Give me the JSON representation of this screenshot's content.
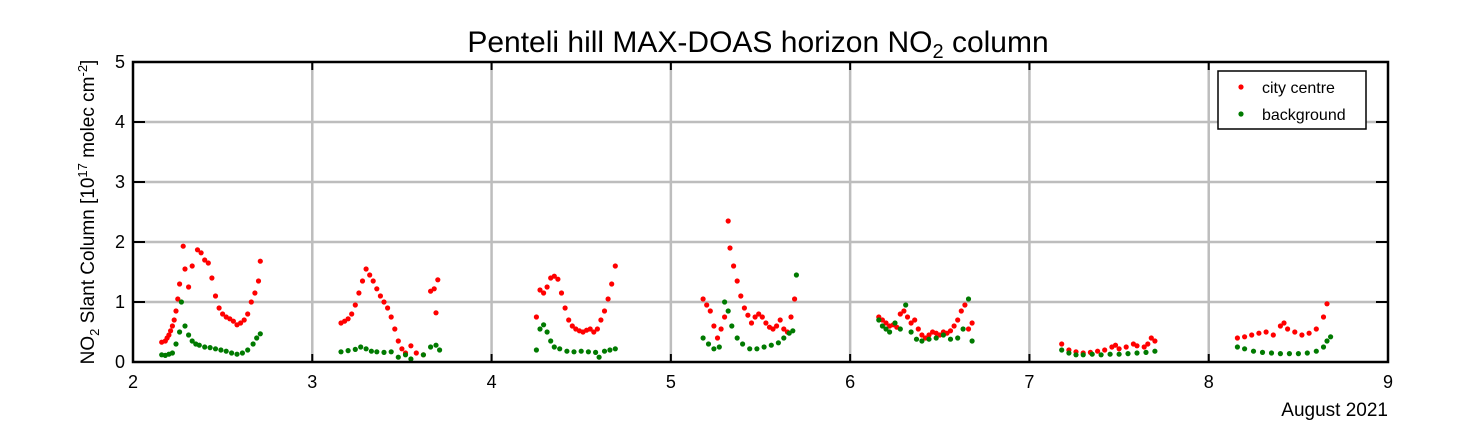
{
  "chart_data": {
    "type": "scatter",
    "title_main": "Penteli hill MAX-DOAS horizon NO",
    "title_sub": "2",
    "title_tail": " column",
    "ylabel_pre": "NO",
    "ylabel_sub": "2",
    "ylabel_mid": " Slant Column [10",
    "ylabel_sup": "17",
    "ylabel_mid2": " molec cm",
    "ylabel_sup2": "-2",
    "ylabel_end": "]",
    "xlabel": "August 2021",
    "xlim": [
      2,
      9
    ],
    "ylim": [
      0,
      5
    ],
    "x_ticks": [
      "2",
      "3",
      "4",
      "5",
      "6",
      "7",
      "8",
      "9"
    ],
    "y_ticks": [
      "0",
      "1",
      "2",
      "3",
      "4",
      "5"
    ],
    "grid": true,
    "legend_position": "top-right",
    "colors": {
      "city": "#ff0000",
      "background": "#007a00"
    },
    "series": [
      {
        "name": "city centre",
        "color": "#ff0000",
        "points": [
          [
            2.16,
            0.33
          ],
          [
            2.18,
            0.35
          ],
          [
            2.19,
            0.4
          ],
          [
            2.2,
            0.45
          ],
          [
            2.21,
            0.52
          ],
          [
            2.22,
            0.6
          ],
          [
            2.23,
            0.7
          ],
          [
            2.24,
            0.85
          ],
          [
            2.25,
            1.05
          ],
          [
            2.26,
            1.3
          ],
          [
            2.28,
            1.93
          ],
          [
            2.29,
            1.55
          ],
          [
            2.31,
            1.25
          ],
          [
            2.33,
            1.6
          ],
          [
            2.36,
            1.87
          ],
          [
            2.38,
            1.82
          ],
          [
            2.4,
            1.7
          ],
          [
            2.42,
            1.65
          ],
          [
            2.44,
            1.4
          ],
          [
            2.46,
            1.1
          ],
          [
            2.48,
            0.9
          ],
          [
            2.5,
            0.8
          ],
          [
            2.52,
            0.75
          ],
          [
            2.54,
            0.72
          ],
          [
            2.56,
            0.68
          ],
          [
            2.58,
            0.62
          ],
          [
            2.6,
            0.65
          ],
          [
            2.62,
            0.7
          ],
          [
            2.64,
            0.8
          ],
          [
            2.66,
            1.0
          ],
          [
            2.68,
            1.15
          ],
          [
            2.7,
            1.35
          ],
          [
            2.71,
            1.68
          ],
          [
            3.16,
            0.65
          ],
          [
            3.18,
            0.68
          ],
          [
            3.2,
            0.72
          ],
          [
            3.22,
            0.8
          ],
          [
            3.24,
            0.95
          ],
          [
            3.26,
            1.15
          ],
          [
            3.28,
            1.35
          ],
          [
            3.3,
            1.55
          ],
          [
            3.32,
            1.45
          ],
          [
            3.34,
            1.35
          ],
          [
            3.36,
            1.22
          ],
          [
            3.38,
            1.1
          ],
          [
            3.4,
            1.0
          ],
          [
            3.42,
            0.9
          ],
          [
            3.44,
            0.75
          ],
          [
            3.46,
            0.55
          ],
          [
            3.48,
            0.35
          ],
          [
            3.5,
            0.22
          ],
          [
            3.52,
            0.15
          ],
          [
            3.55,
            0.27
          ],
          [
            3.58,
            0.15
          ],
          [
            3.62,
            0.12
          ],
          [
            3.66,
            1.18
          ],
          [
            3.68,
            1.22
          ],
          [
            3.69,
            0.82
          ],
          [
            3.7,
            1.37
          ],
          [
            4.25,
            0.75
          ],
          [
            4.27,
            1.2
          ],
          [
            4.29,
            1.15
          ],
          [
            4.31,
            1.25
          ],
          [
            4.33,
            1.4
          ],
          [
            4.35,
            1.43
          ],
          [
            4.37,
            1.38
          ],
          [
            4.39,
            1.15
          ],
          [
            4.41,
            0.9
          ],
          [
            4.43,
            0.7
          ],
          [
            4.45,
            0.6
          ],
          [
            4.47,
            0.55
          ],
          [
            4.49,
            0.52
          ],
          [
            4.51,
            0.5
          ],
          [
            4.53,
            0.53
          ],
          [
            4.55,
            0.55
          ],
          [
            4.57,
            0.5
          ],
          [
            4.59,
            0.55
          ],
          [
            4.61,
            0.7
          ],
          [
            4.63,
            0.85
          ],
          [
            4.65,
            1.05
          ],
          [
            4.67,
            1.3
          ],
          [
            4.69,
            1.6
          ],
          [
            5.18,
            1.05
          ],
          [
            5.2,
            0.95
          ],
          [
            5.22,
            0.85
          ],
          [
            5.24,
            0.6
          ],
          [
            5.26,
            0.4
          ],
          [
            5.28,
            0.55
          ],
          [
            5.3,
            0.75
          ],
          [
            5.32,
            2.35
          ],
          [
            5.33,
            1.9
          ],
          [
            5.35,
            1.6
          ],
          [
            5.37,
            1.35
          ],
          [
            5.39,
            1.1
          ],
          [
            5.41,
            0.9
          ],
          [
            5.43,
            0.78
          ],
          [
            5.45,
            0.65
          ],
          [
            5.47,
            0.75
          ],
          [
            5.49,
            0.8
          ],
          [
            5.51,
            0.75
          ],
          [
            5.53,
            0.65
          ],
          [
            5.55,
            0.58
          ],
          [
            5.57,
            0.55
          ],
          [
            5.59,
            0.6
          ],
          [
            5.61,
            0.7
          ],
          [
            5.63,
            0.55
          ],
          [
            5.65,
            0.5
          ],
          [
            5.67,
            0.75
          ],
          [
            5.69,
            1.05
          ],
          [
            6.16,
            0.75
          ],
          [
            6.18,
            0.7
          ],
          [
            6.2,
            0.65
          ],
          [
            6.22,
            0.6
          ],
          [
            6.24,
            0.62
          ],
          [
            6.26,
            0.58
          ],
          [
            6.28,
            0.8
          ],
          [
            6.3,
            0.85
          ],
          [
            6.32,
            0.75
          ],
          [
            6.34,
            0.65
          ],
          [
            6.36,
            0.7
          ],
          [
            6.38,
            0.55
          ],
          [
            6.4,
            0.45
          ],
          [
            6.42,
            0.4
          ],
          [
            6.44,
            0.45
          ],
          [
            6.46,
            0.5
          ],
          [
            6.48,
            0.48
          ],
          [
            6.5,
            0.45
          ],
          [
            6.52,
            0.5
          ],
          [
            6.54,
            0.48
          ],
          [
            6.56,
            0.52
          ],
          [
            6.58,
            0.6
          ],
          [
            6.6,
            0.7
          ],
          [
            6.62,
            0.85
          ],
          [
            6.64,
            0.95
          ],
          [
            6.66,
            0.55
          ],
          [
            6.68,
            0.65
          ],
          [
            7.18,
            0.3
          ],
          [
            7.22,
            0.2
          ],
          [
            7.26,
            0.17
          ],
          [
            7.3,
            0.15
          ],
          [
            7.34,
            0.16
          ],
          [
            7.38,
            0.18
          ],
          [
            7.42,
            0.2
          ],
          [
            7.46,
            0.25
          ],
          [
            7.48,
            0.28
          ],
          [
            7.5,
            0.22
          ],
          [
            7.54,
            0.25
          ],
          [
            7.58,
            0.3
          ],
          [
            7.6,
            0.27
          ],
          [
            7.64,
            0.25
          ],
          [
            7.66,
            0.3
          ],
          [
            7.68,
            0.4
          ],
          [
            7.7,
            0.35
          ],
          [
            8.16,
            0.4
          ],
          [
            8.2,
            0.42
          ],
          [
            8.24,
            0.45
          ],
          [
            8.28,
            0.48
          ],
          [
            8.32,
            0.5
          ],
          [
            8.36,
            0.45
          ],
          [
            8.4,
            0.6
          ],
          [
            8.42,
            0.65
          ],
          [
            8.44,
            0.55
          ],
          [
            8.48,
            0.5
          ],
          [
            8.52,
            0.45
          ],
          [
            8.56,
            0.48
          ],
          [
            8.6,
            0.55
          ],
          [
            8.64,
            0.75
          ],
          [
            8.66,
            0.97
          ]
        ]
      },
      {
        "name": "background",
        "color": "#007a00",
        "points": [
          [
            2.16,
            0.12
          ],
          [
            2.18,
            0.11
          ],
          [
            2.2,
            0.13
          ],
          [
            2.22,
            0.15
          ],
          [
            2.24,
            0.3
          ],
          [
            2.26,
            0.5
          ],
          [
            2.27,
            1.0
          ],
          [
            2.29,
            0.6
          ],
          [
            2.31,
            0.45
          ],
          [
            2.33,
            0.35
          ],
          [
            2.35,
            0.3
          ],
          [
            2.37,
            0.28
          ],
          [
            2.4,
            0.25
          ],
          [
            2.43,
            0.24
          ],
          [
            2.46,
            0.22
          ],
          [
            2.49,
            0.2
          ],
          [
            2.52,
            0.18
          ],
          [
            2.55,
            0.15
          ],
          [
            2.58,
            0.13
          ],
          [
            2.61,
            0.15
          ],
          [
            2.64,
            0.2
          ],
          [
            2.67,
            0.3
          ],
          [
            2.69,
            0.4
          ],
          [
            2.71,
            0.47
          ],
          [
            3.16,
            0.17
          ],
          [
            3.2,
            0.19
          ],
          [
            3.24,
            0.21
          ],
          [
            3.27,
            0.25
          ],
          [
            3.3,
            0.22
          ],
          [
            3.33,
            0.18
          ],
          [
            3.36,
            0.17
          ],
          [
            3.4,
            0.16
          ],
          [
            3.44,
            0.17
          ],
          [
            3.48,
            0.08
          ],
          [
            3.52,
            0.12
          ],
          [
            3.55,
            0.05
          ],
          [
            3.62,
            0.12
          ],
          [
            3.66,
            0.25
          ],
          [
            3.69,
            0.28
          ],
          [
            3.71,
            0.2
          ],
          [
            4.25,
            0.2
          ],
          [
            4.27,
            0.55
          ],
          [
            4.29,
            0.62
          ],
          [
            4.31,
            0.5
          ],
          [
            4.33,
            0.35
          ],
          [
            4.35,
            0.25
          ],
          [
            4.38,
            0.22
          ],
          [
            4.42,
            0.18
          ],
          [
            4.46,
            0.17
          ],
          [
            4.5,
            0.18
          ],
          [
            4.54,
            0.17
          ],
          [
            4.58,
            0.16
          ],
          [
            4.6,
            0.08
          ],
          [
            4.63,
            0.18
          ],
          [
            4.66,
            0.2
          ],
          [
            4.69,
            0.22
          ],
          [
            5.18,
            0.4
          ],
          [
            5.21,
            0.3
          ],
          [
            5.24,
            0.22
          ],
          [
            5.27,
            0.25
          ],
          [
            5.3,
            1.0
          ],
          [
            5.32,
            0.85
          ],
          [
            5.34,
            0.6
          ],
          [
            5.37,
            0.4
          ],
          [
            5.4,
            0.3
          ],
          [
            5.44,
            0.22
          ],
          [
            5.48,
            0.22
          ],
          [
            5.52,
            0.25
          ],
          [
            5.56,
            0.28
          ],
          [
            5.6,
            0.32
          ],
          [
            5.63,
            0.4
          ],
          [
            5.66,
            0.48
          ],
          [
            5.68,
            0.52
          ],
          [
            5.7,
            1.45
          ],
          [
            6.16,
            0.7
          ],
          [
            6.18,
            0.6
          ],
          [
            6.2,
            0.55
          ],
          [
            6.22,
            0.5
          ],
          [
            6.25,
            0.65
          ],
          [
            6.28,
            0.55
          ],
          [
            6.31,
            0.95
          ],
          [
            6.34,
            0.5
          ],
          [
            6.37,
            0.38
          ],
          [
            6.4,
            0.35
          ],
          [
            6.44,
            0.38
          ],
          [
            6.48,
            0.4
          ],
          [
            6.52,
            0.45
          ],
          [
            6.56,
            0.38
          ],
          [
            6.6,
            0.4
          ],
          [
            6.63,
            0.55
          ],
          [
            6.66,
            1.05
          ],
          [
            6.68,
            0.35
          ],
          [
            7.18,
            0.2
          ],
          [
            7.22,
            0.15
          ],
          [
            7.26,
            0.12
          ],
          [
            7.3,
            0.12
          ],
          [
            7.35,
            0.13
          ],
          [
            7.4,
            0.12
          ],
          [
            7.45,
            0.13
          ],
          [
            7.5,
            0.13
          ],
          [
            7.55,
            0.14
          ],
          [
            7.6,
            0.15
          ],
          [
            7.65,
            0.16
          ],
          [
            7.7,
            0.18
          ],
          [
            8.16,
            0.25
          ],
          [
            8.2,
            0.22
          ],
          [
            8.25,
            0.18
          ],
          [
            8.3,
            0.16
          ],
          [
            8.35,
            0.15
          ],
          [
            8.4,
            0.14
          ],
          [
            8.45,
            0.14
          ],
          [
            8.5,
            0.14
          ],
          [
            8.55,
            0.15
          ],
          [
            8.6,
            0.18
          ],
          [
            8.64,
            0.25
          ],
          [
            8.66,
            0.35
          ],
          [
            8.68,
            0.42
          ]
        ]
      }
    ]
  }
}
